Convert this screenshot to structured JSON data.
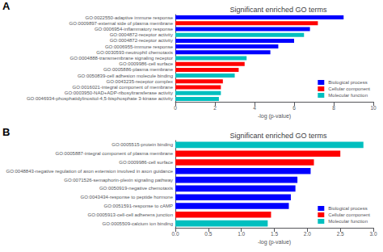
{
  "chart_data": [
    {
      "type": "bar",
      "orientation": "horizontal",
      "title": "Significant enriched GO terms",
      "annotations": [
        "A"
      ],
      "categories": [
        "GO:0022550-adaptive immune response",
        "GO:0009897-external side of plasma membrane",
        "GO:0006954-inflammatory response",
        "GO:0004872-receptor activity",
        "GO:0004872-receptor activity",
        "GO:0006955-immune response",
        "GO:0030593-neutrophil chemotaxis",
        "GO:0004888-transmembrane signaling receptor",
        "GO:0009986-cell surface",
        "GO:0005886-plasma membrane",
        "GO:0050839-cell adhesion molecule binding",
        "GO:0043235-receptor complex",
        "GO:0016021-integral component of membrane",
        "GO:0003950-NAD+ADP-ribosyltransferase activity",
        "GO:0046934-phosphatidylinositol-4,5-bisphosphate 3-kinase activity"
      ],
      "series": [
        {
          "name": "Biological process",
          "color": "#0000FF",
          "values": [
            8.5,
            null,
            6.8,
            null,
            6.0,
            5.2,
            4.8,
            null,
            null,
            null,
            null,
            null,
            null,
            null,
            null
          ]
        },
        {
          "name": "Cellular component",
          "color": "#FF0000",
          "values": [
            null,
            7.2,
            null,
            null,
            null,
            null,
            null,
            null,
            3.5,
            3.2,
            null,
            2.4,
            2.3,
            null,
            null
          ]
        },
        {
          "name": "Molecular function",
          "color": "#00BFBF",
          "values": [
            null,
            null,
            null,
            6.5,
            null,
            null,
            null,
            3.6,
            null,
            null,
            3.0,
            null,
            null,
            2.3,
            2.2
          ]
        }
      ],
      "xlabel": "-log (p-value)",
      "xlim": [
        0,
        10
      ],
      "xticks": [
        0,
        2,
        4,
        6,
        8,
        10
      ],
      "grid": false,
      "legend": "lower right"
    },
    {
      "type": "bar",
      "orientation": "horizontal",
      "title": "Significant enriched GO terms",
      "annotations": [
        "B"
      ],
      "categories": [
        "GO:0005515-protein binding",
        "GO:0005887-integral component of plasma membrane",
        "GO:0009986-cell surface",
        "GO:0048843-negative regulation of axon extension involved in axon guidance",
        "GO:0071526-semaphorin-plexin signaling pathway",
        "GO:0050919-negative chemotaxis",
        "GO:0043434-response to peptide hormone",
        "GO:0051591-response to cAMP",
        "GO:0005913-cell-cell adherens junction",
        "GO:0005509-calcium ion binding"
      ],
      "series": [
        {
          "name": "Biological process",
          "color": "#0000FF",
          "values": [
            null,
            null,
            null,
            2.05,
            1.85,
            1.82,
            1.75,
            1.72,
            null,
            null
          ]
        },
        {
          "name": "Cellular component",
          "color": "#FF0000",
          "values": [
            null,
            2.5,
            2.1,
            null,
            null,
            null,
            null,
            null,
            1.45,
            null
          ]
        },
        {
          "name": "Molecular function",
          "color": "#00BFBF",
          "values": [
            2.85,
            null,
            null,
            null,
            null,
            null,
            null,
            null,
            null,
            1.4
          ]
        }
      ],
      "xlabel": "-log (p-value)",
      "xlim": [
        0,
        3
      ],
      "xticks": [
        {
          "value": 0,
          "label": "0.0"
        },
        0.5,
        {
          "value": 1,
          "label": "1.0"
        },
        1.5,
        {
          "value": 2,
          "label": "2.0"
        },
        2.5,
        {
          "value": 3,
          "label": "3.0"
        }
      ],
      "grid": false,
      "legend": "lower right"
    }
  ]
}
